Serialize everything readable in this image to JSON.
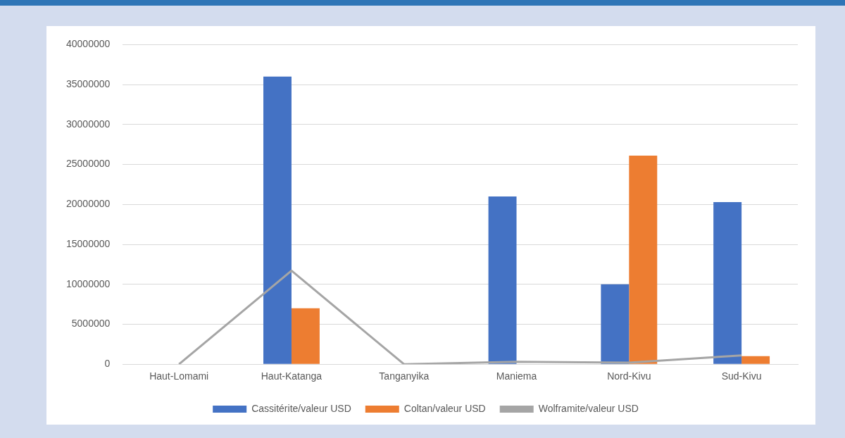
{
  "chart_data": {
    "type": "bar",
    "categories": [
      "Haut-Lomami",
      "Haut-Katanga",
      "Tanganyika",
      "Maniema",
      "Nord-Kivu",
      "Sud-Kivu"
    ],
    "series": [
      {
        "name": "Cassitérite/valeur USD",
        "color": "#4472c4",
        "values": [
          0,
          36000000,
          0,
          21000000,
          10000000,
          20300000
        ]
      },
      {
        "name": "Coltan/valeur USD",
        "color": "#ed7d31",
        "values": [
          0,
          7000000,
          0,
          0,
          26100000,
          1000000
        ]
      },
      {
        "name": "Wolframite/valeur USD",
        "color": "#a5a5a5",
        "type": "line",
        "values": [
          0,
          11700000,
          0,
          300000,
          200000,
          1100000
        ]
      }
    ],
    "ylim": [
      0,
      40000000
    ],
    "yticks": [
      0,
      5000000,
      10000000,
      15000000,
      20000000,
      25000000,
      30000000,
      35000000,
      40000000
    ],
    "grid": "y",
    "legend": "bottom",
    "marker": "none"
  }
}
